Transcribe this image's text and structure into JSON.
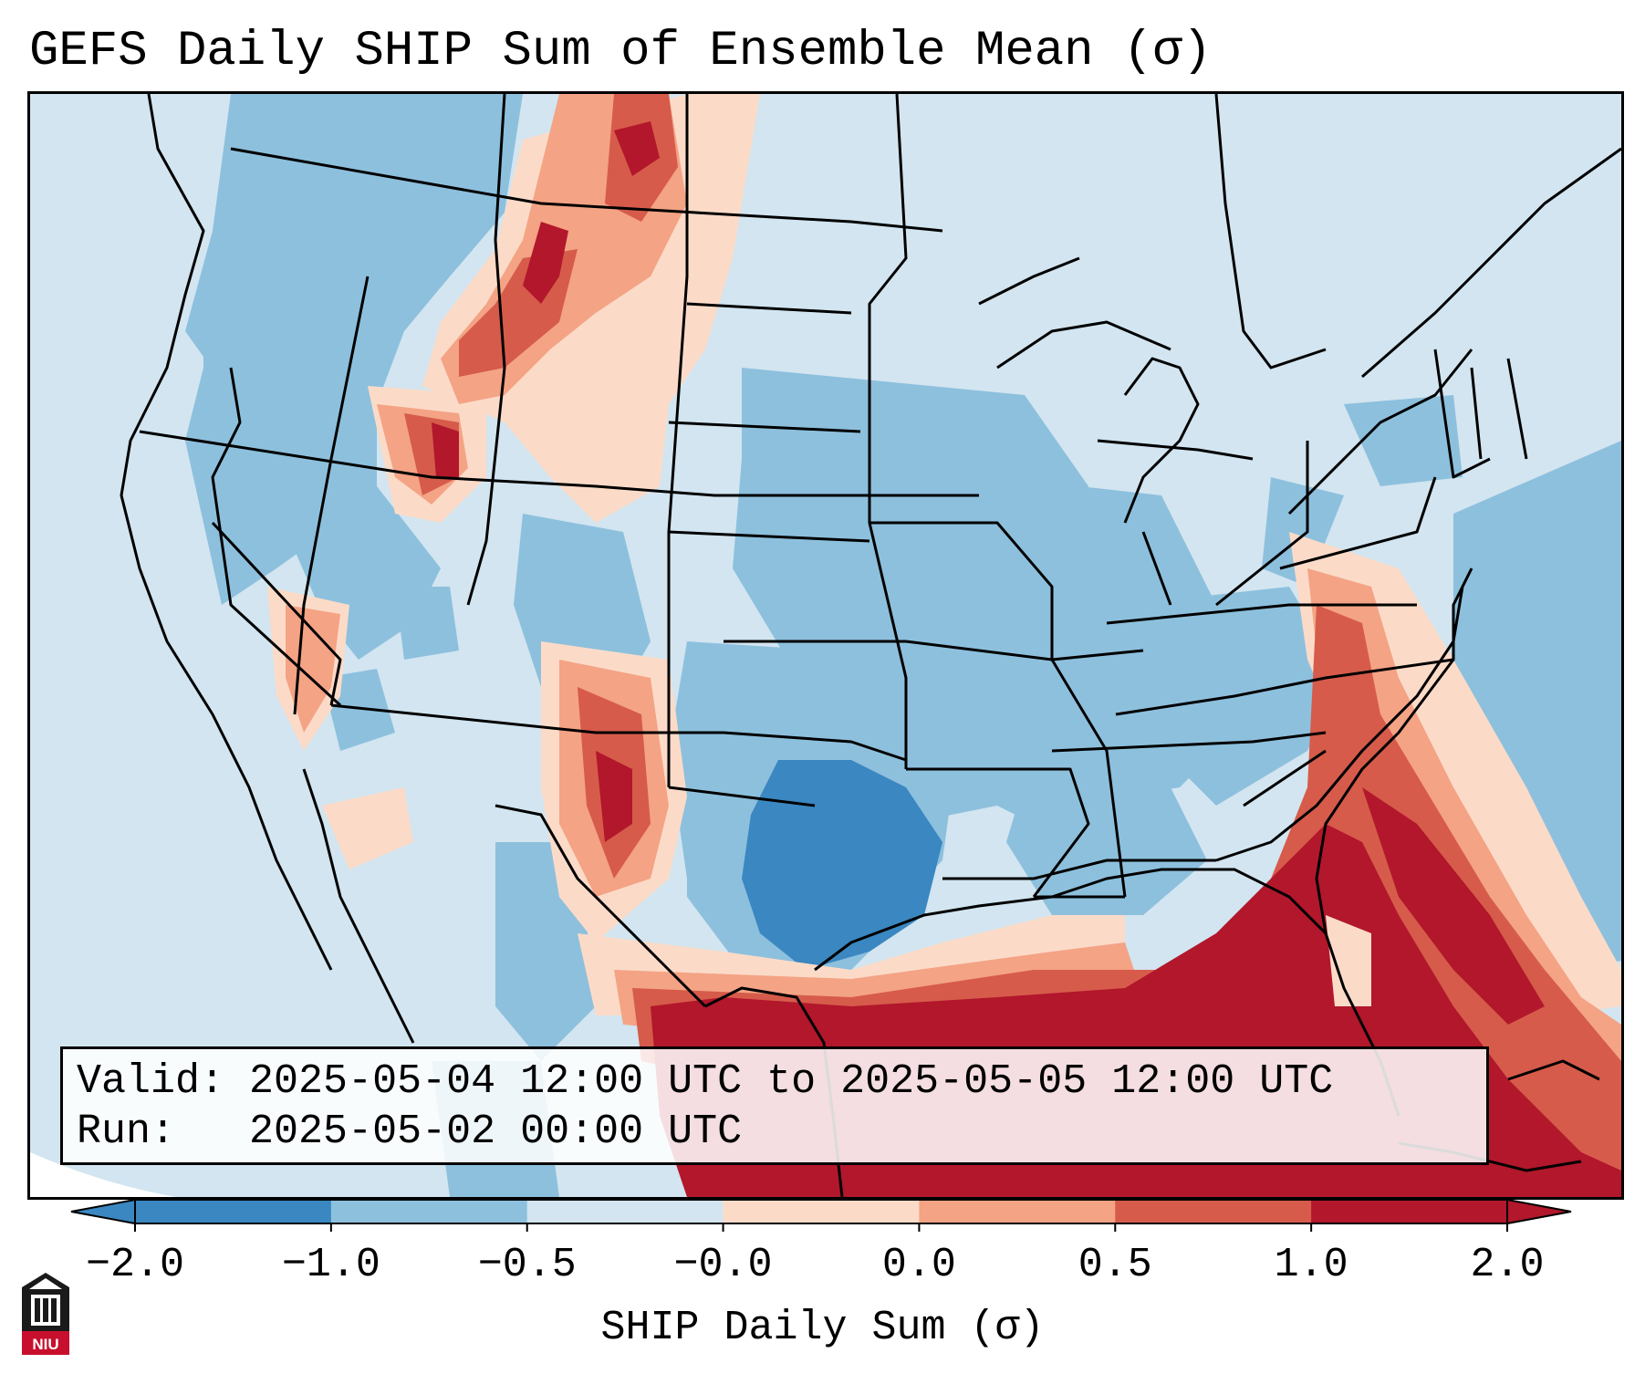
{
  "title": "GEFS Daily SHIP Sum of Ensemble Mean (σ)",
  "info": {
    "valid_label": "Valid:",
    "valid_value": "2025-05-04 12:00 UTC to 2025-05-05 12:00 UTC",
    "run_label": "Run:",
    "run_value": "2025-05-02 00:00 UTC"
  },
  "colorbar": {
    "label": "SHIP Daily Sum (σ)",
    "ticks": [
      "−2.0",
      "−1.0",
      "−0.5",
      "−0.0",
      "0.0",
      "0.5",
      "1.0",
      "2.0"
    ],
    "colors": [
      "#3a87c1",
      "#8dc0dd",
      "#d2e5f0",
      "#fbdbc8",
      "#f4a385",
      "#d65b4b",
      "#b2172b"
    ],
    "extend": "both"
  },
  "map": {
    "projection": "lambert-conformal",
    "region": "contiguous-us",
    "basemap_color": "#d2e5f0"
  },
  "logo": {
    "text": "NIU",
    "color": "#c8102e"
  }
}
